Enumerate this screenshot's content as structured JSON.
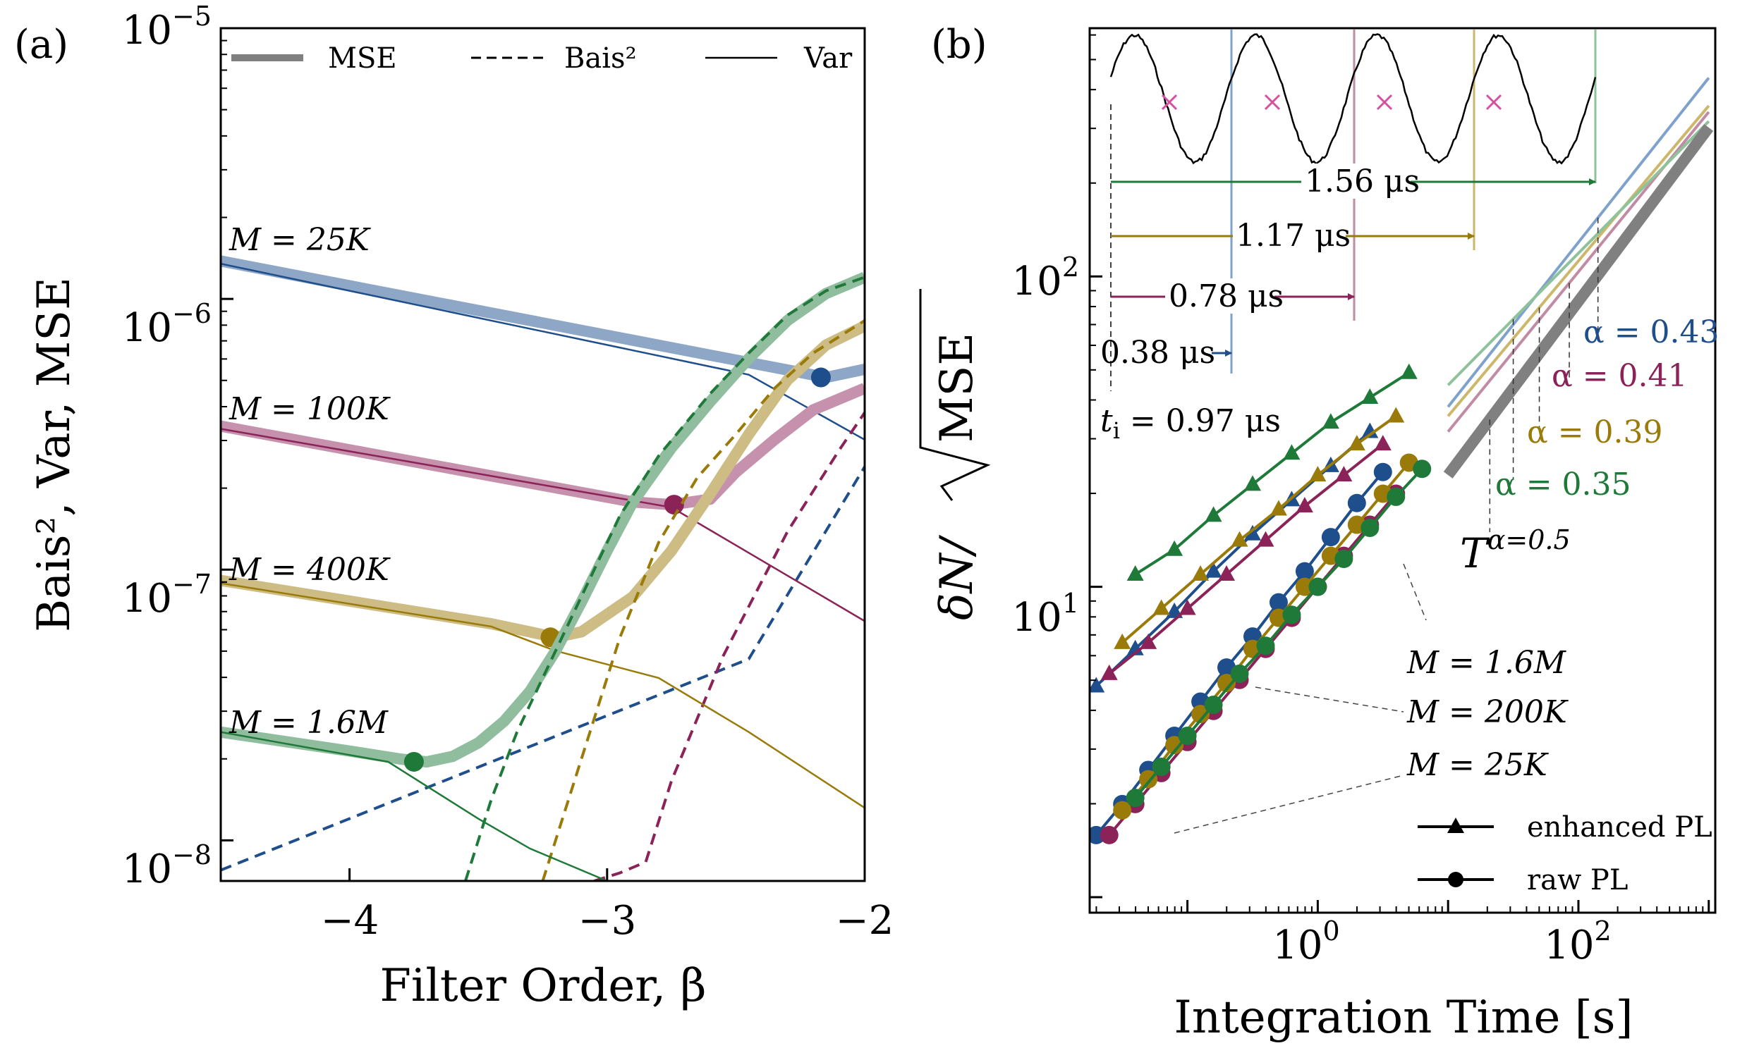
{
  "chart_data": [
    {
      "panel_label": "(a)",
      "type": "line",
      "xlabel": "Filter Order, β",
      "ylabel": "Bais², Var, MSE",
      "xlim": [
        -4.5,
        -2.0
      ],
      "ylim_log10": [
        -8.15,
        -5.0
      ],
      "yscale": "log",
      "x_ticks": [
        -4,
        -3,
        -2
      ],
      "x_tick_labels": [
        "−4",
        "−3",
        "−2"
      ],
      "y_ticks_log10": [
        -8,
        -7,
        -6,
        -5
      ],
      "y_tick_base": "10",
      "y_tick_exponents": [
        "−8",
        "−7",
        "−6",
        "−5"
      ],
      "legend": {
        "placement": "top",
        "entries": [
          "MSE",
          "Bais²",
          "Var"
        ]
      },
      "series_labels": [
        "M = 25K",
        "M = 100K",
        "M = 400K",
        "M = 1.6M"
      ],
      "colors": [
        "#1f4e8c",
        "#8b2258",
        "#9a7b0a",
        "#1f7a3a"
      ],
      "series": [
        {
          "name": "M = 25K",
          "mse_x": [
            -4.5,
            -2.15,
            -2.0
          ],
          "mse_log10": [
            -5.86,
            -6.29,
            -6.26
          ],
          "var_x": [
            -4.5,
            -2.45,
            -2.0
          ],
          "var_log10": [
            -5.87,
            -6.28,
            -6.52
          ],
          "bias_x": [
            -4.5,
            -2.45,
            -2.0
          ],
          "bias_log10": [
            -8.11,
            -7.33,
            -6.62
          ],
          "optimum": [
            -2.17,
            -6.29
          ]
        },
        {
          "name": "M = 100K",
          "mse_x": [
            -4.5,
            -2.9,
            -2.75,
            -2.6,
            -2.5,
            -2.35,
            -2.2,
            -2.0
          ],
          "mse_log10": [
            -6.47,
            -6.75,
            -6.76,
            -6.74,
            -6.64,
            -6.52,
            -6.41,
            -6.33
          ],
          "var_x": [
            -4.5,
            -2.75,
            -2.0
          ],
          "var_log10": [
            -6.48,
            -6.77,
            -7.19
          ],
          "bias_x": [
            -3.05,
            -2.95,
            -2.85,
            -2.75,
            -2.55,
            -2.3,
            -2.1,
            -2.0
          ],
          "bias_log10": [
            -8.15,
            -8.12,
            -8.08,
            -7.78,
            -7.32,
            -6.86,
            -6.56,
            -6.42
          ],
          "optimum": [
            -2.74,
            -6.76
          ]
        },
        {
          "name": "M = 400K",
          "mse_x": [
            -4.5,
            -3.45,
            -3.3,
            -3.2,
            -3.1,
            -2.9,
            -2.75,
            -2.6,
            -2.45,
            -2.3,
            -2.15,
            -2.0
          ],
          "mse_log10": [
            -7.04,
            -7.2,
            -7.23,
            -7.25,
            -7.23,
            -7.1,
            -6.93,
            -6.72,
            -6.5,
            -6.3,
            -6.17,
            -6.1
          ],
          "var_x": [
            -4.5,
            -3.45,
            -3.2,
            -2.8,
            -2.45,
            -2.0
          ],
          "var_log10": [
            -7.05,
            -7.21,
            -7.3,
            -7.4,
            -7.6,
            -7.88
          ],
          "bias_x": [
            -3.25,
            -3.15,
            -3.05,
            -2.95,
            -2.8,
            -2.65,
            -2.5,
            -2.35,
            -2.2,
            -2.0
          ],
          "bias_log10": [
            -8.15,
            -7.85,
            -7.55,
            -7.25,
            -6.9,
            -6.66,
            -6.5,
            -6.33,
            -6.2,
            -6.08
          ],
          "optimum": [
            -3.22,
            -7.25
          ]
        },
        {
          "name": "M = 1.6M",
          "mse_x": [
            -4.5,
            -4.0,
            -3.8,
            -3.7,
            -3.6,
            -3.5,
            -3.4,
            -3.3,
            -3.2,
            -3.1,
            -3.0,
            -2.9,
            -2.75,
            -2.6,
            -2.45,
            -2.3,
            -2.15,
            -2.0
          ],
          "mse_log10": [
            -7.6,
            -7.67,
            -7.7,
            -7.71,
            -7.69,
            -7.64,
            -7.56,
            -7.45,
            -7.3,
            -7.12,
            -6.93,
            -6.75,
            -6.55,
            -6.38,
            -6.22,
            -6.08,
            -5.98,
            -5.92
          ],
          "var_x": [
            -4.5,
            -3.85,
            -3.7,
            -3.5,
            -3.3,
            -3.0
          ],
          "var_log10": [
            -7.6,
            -7.71,
            -7.8,
            -7.92,
            -8.03,
            -8.15
          ],
          "bias_x": [
            -3.55,
            -3.45,
            -3.35,
            -3.25,
            -3.15,
            -3.05,
            -2.95,
            -2.8,
            -2.6,
            -2.45,
            -2.3,
            -2.15,
            -2.0
          ],
          "bias_log10": [
            -8.15,
            -7.85,
            -7.6,
            -7.4,
            -7.2,
            -7.0,
            -6.8,
            -6.58,
            -6.35,
            -6.2,
            -6.06,
            -5.97,
            -5.92
          ],
          "optimum": [
            -3.75,
            -7.71
          ]
        }
      ]
    },
    {
      "panel_label": "(b)",
      "type": "scatter",
      "xlabel": "Integration Time [s]",
      "ylabel": "δN/√MSE",
      "ylabel_parts": [
        "δN/",
        "MSE"
      ],
      "xscale": "log",
      "yscale": "log",
      "xlim_log10": [
        -1.75,
        3.05
      ],
      "ylim_log10": [
        -0.05,
        2.8
      ],
      "x_ticks_log10": [
        0,
        2
      ],
      "y_ticks_log10": [
        1,
        2
      ],
      "tick_base": "10",
      "x_tick_exponents": [
        "0",
        "2"
      ],
      "y_tick_exponents": [
        "1",
        "2"
      ],
      "legend": {
        "placement": "bottom-right",
        "entries": [
          "enhanced PL",
          "raw PL"
        ]
      },
      "colors": [
        "#1f4e8c",
        "#8b2258",
        "#9a7b0a",
        "#1f7a3a"
      ],
      "group_labels": [
        "M = 1.6M",
        "M = 200K",
        "M = 25K"
      ],
      "enhanced_series": [
        {
          "name": "blue enhanced",
          "color": "#1f4e8c",
          "x_log10": [
            -1.7,
            -1.4,
            -1.1,
            -0.8,
            -0.5,
            -0.2,
            0.1,
            0.4
          ],
          "y_log10": [
            0.68,
            0.8,
            0.92,
            1.05,
            1.17,
            1.28,
            1.39,
            1.5
          ]
        },
        {
          "name": "magenta enhanced",
          "color": "#8b2258",
          "x_log10": [
            -1.6,
            -1.3,
            -1.0,
            -0.7,
            -0.4,
            -0.1,
            0.2,
            0.5
          ],
          "y_log10": [
            0.72,
            0.82,
            0.93,
            1.04,
            1.15,
            1.26,
            1.36,
            1.46
          ]
        },
        {
          "name": "gold enhanced",
          "color": "#9a7b0a",
          "x_log10": [
            -1.5,
            -1.2,
            -0.9,
            -0.6,
            -0.3,
            0.0,
            0.3,
            0.6
          ],
          "y_log10": [
            0.82,
            0.93,
            1.04,
            1.15,
            1.25,
            1.36,
            1.46,
            1.55
          ]
        },
        {
          "name": "green enhanced",
          "color": "#1f7a3a",
          "x_log10": [
            -1.4,
            -1.1,
            -0.8,
            -0.5,
            -0.2,
            0.1,
            0.4,
            0.7
          ],
          "y_log10": [
            1.04,
            1.12,
            1.23,
            1.33,
            1.43,
            1.53,
            1.61,
            1.69
          ]
        }
      ],
      "raw_series": [
        {
          "name": "blue raw",
          "color": "#1f4e8c",
          "x_log10": [
            -1.7,
            -1.5,
            -1.3,
            -1.1,
            -0.9,
            -0.7,
            -0.5,
            -0.3,
            -0.1,
            0.1,
            0.3,
            0.5
          ],
          "y_log10": [
            0.2,
            0.3,
            0.41,
            0.52,
            0.63,
            0.74,
            0.84,
            0.95,
            1.05,
            1.16,
            1.27,
            1.37
          ]
        },
        {
          "name": "magenta raw",
          "color": "#8b2258",
          "x_log10": [
            -1.6,
            -1.4,
            -1.2,
            -1.0,
            -0.8,
            -0.6,
            -0.4,
            -0.2,
            0.0,
            0.2,
            0.4,
            0.6
          ],
          "y_log10": [
            0.2,
            0.3,
            0.4,
            0.5,
            0.6,
            0.7,
            0.8,
            0.9,
            1.0,
            1.1,
            1.2,
            1.3
          ]
        },
        {
          "name": "gold raw",
          "color": "#9a7b0a",
          "x_log10": [
            -1.5,
            -1.3,
            -1.1,
            -0.9,
            -0.7,
            -0.5,
            -0.3,
            -0.1,
            0.1,
            0.3,
            0.5,
            0.7
          ],
          "y_log10": [
            0.28,
            0.38,
            0.49,
            0.59,
            0.69,
            0.8,
            0.9,
            1.0,
            1.1,
            1.2,
            1.3,
            1.4
          ]
        },
        {
          "name": "green raw",
          "color": "#1f7a3a",
          "x_log10": [
            -1.4,
            -1.2,
            -1.0,
            -0.8,
            -0.6,
            -0.4,
            -0.2,
            0.0,
            0.2,
            0.4,
            0.6,
            0.8
          ],
          "y_log10": [
            0.32,
            0.42,
            0.52,
            0.62,
            0.72,
            0.81,
            0.91,
            1.0,
            1.09,
            1.19,
            1.29,
            1.38
          ]
        }
      ],
      "trend_lines": [
        {
          "name": "α = 0.43",
          "color": "#7fa2cc",
          "x_log10": [
            1.0,
            3.0
          ],
          "y_log10": [
            1.58,
            2.64
          ]
        },
        {
          "name": "α = 0.41",
          "color": "#c18aa5",
          "x_log10": [
            1.0,
            3.0
          ],
          "y_log10": [
            1.5,
            2.53
          ]
        },
        {
          "name": "α = 0.39",
          "color": "#cdb76a",
          "x_log10": [
            1.0,
            3.0
          ],
          "y_log10": [
            1.55,
            2.55
          ]
        },
        {
          "name": "α = 0.35",
          "color": "#8dc29a",
          "x_log10": [
            1.0,
            3.0
          ],
          "y_log10": [
            1.65,
            2.5
          ]
        },
        {
          "name": "T^α=0.5",
          "color": "#808080",
          "x_log10": [
            1.0,
            3.0
          ],
          "y_log10": [
            1.36,
            2.48
          ]
        }
      ],
      "trend_labels": [
        {
          "text": "α = 0.43",
          "color": "#1f4e8c",
          "drop_x_log10": 2.15
        },
        {
          "text": "α = 0.41",
          "color": "#8b2258",
          "drop_x_log10": 1.93
        },
        {
          "text": "α = 0.39",
          "color": "#9a7b0a",
          "drop_x_log10": 1.7
        },
        {
          "text": "α = 0.35",
          "color": "#1f7a3a",
          "drop_x_log10": 1.5
        }
      ],
      "power_law_label": {
        "base": "T",
        "exponent": "α=0.5"
      },
      "inset": {
        "signal": "periodic PL trace",
        "periods_us": [
          0.38,
          0.78,
          1.17,
          1.56
        ],
        "period_labels": [
          "0.38 μs",
          "0.78 μs",
          "1.17 μs",
          "1.56 μs"
        ],
        "period_colors": [
          "#1f4e8c",
          "#8b2258",
          "#9a7b0a",
          "#1f7a3a"
        ],
        "ti_label": "t_i = 0.97 μs",
        "ti_base": "t",
        "ti_sub": "i",
        "ti_rest": " = 0.97 μs",
        "marker_color": "#d94fa0"
      }
    }
  ]
}
